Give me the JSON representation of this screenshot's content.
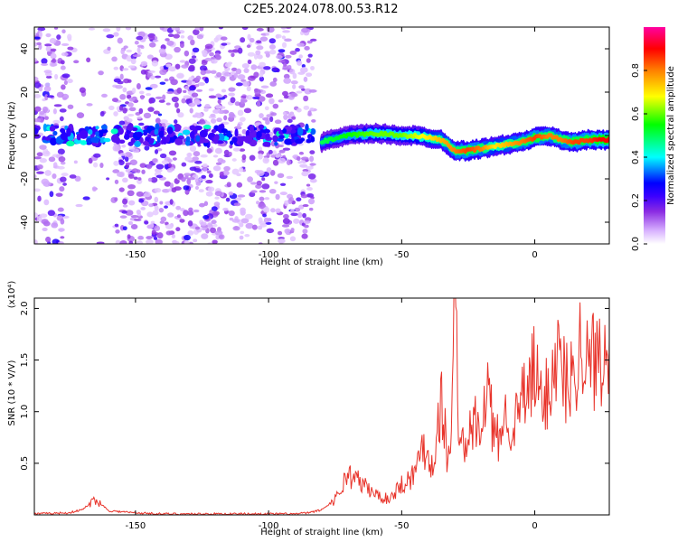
{
  "title": "C2E5.2024.078.00.53.R12",
  "chart_data": [
    {
      "type": "heatmap",
      "xlabel": "Height of straight line (km)",
      "ylabel": "Frequency (Hz)",
      "xlim": [
        -188,
        28
      ],
      "ylim": [
        -50,
        50
      ],
      "x_ticks": [
        -150,
        -100,
        -50,
        0
      ],
      "y_ticks": [
        -40,
        -20,
        0,
        20,
        40
      ],
      "colorbar": {
        "label": "Normalized spectral amplitude",
        "range": [
          0,
          1
        ],
        "ticks": [
          0.0,
          0.2,
          0.4,
          0.6,
          0.8
        ],
        "tick_labels": [
          "0.0",
          "0.2",
          "0.4",
          "0.6",
          "0.8"
        ],
        "colormap": [
          "#ffffff",
          "#d9b3ff",
          "#8a2be2",
          "#3b00ff",
          "#0000ff",
          "#00ffff",
          "#00ff00",
          "#ffff00",
          "#ff8000",
          "#ff0000",
          "#ff00a0"
        ]
      },
      "ridge": {
        "x": [
          -80,
          -70,
          -60,
          -50,
          -45,
          -40,
          -35,
          -30,
          -25,
          -20,
          -15,
          -10,
          -5,
          0,
          5,
          10,
          15,
          20,
          25,
          28
        ],
        "freq": [
          -3,
          0,
          1,
          0,
          0,
          -1,
          -2,
          -7,
          -7,
          -6,
          -5,
          -4,
          -3,
          -1,
          0,
          -2,
          -3,
          -2,
          -2,
          -2
        ],
        "amplitude": [
          0.5,
          0.55,
          0.6,
          0.6,
          0.65,
          0.7,
          0.75,
          0.8,
          0.85,
          0.8,
          0.7,
          0.75,
          0.8,
          0.85,
          0.8,
          0.8,
          0.85,
          0.85,
          0.9,
          0.9
        ]
      },
      "noise_region": {
        "x_range": [
          -188,
          -83
        ],
        "freq_range": [
          -50,
          50
        ],
        "amplitude": "0.05–0.4"
      }
    },
    {
      "type": "line",
      "xlabel": "Height of straight line (km)",
      "ylabel": "SNR (10 * V/V)",
      "ylabel_multiplier": "(x10⁴)",
      "xlim": [
        -188,
        28
      ],
      "ylim": [
        0,
        2.1
      ],
      "x_ticks": [
        -150,
        -100,
        -50,
        0
      ],
      "y_ticks": [
        0.5,
        1.0,
        1.5,
        2.0
      ],
      "y_tick_labels": [
        "0.5",
        "1.0",
        "1.5",
        "2.0"
      ],
      "color": "#e8332a",
      "series": [
        {
          "x": [
            -188,
            -175,
            -170,
            -165,
            -160,
            -150,
            -140,
            -120,
            -100,
            -90,
            -85,
            -80,
            -75,
            -72,
            -70,
            -65,
            -60,
            -55,
            -50,
            -45,
            -42,
            -40,
            -38,
            -35,
            -33,
            -32,
            -30,
            -28,
            -25,
            -22,
            -20,
            -18,
            -15,
            -12,
            -10,
            -8,
            -5,
            -3,
            0,
            3,
            5,
            8,
            10,
            13,
            15,
            18,
            20,
            22,
            25,
            28
          ],
          "y": [
            0.01,
            0.02,
            0.05,
            0.15,
            0.04,
            0.02,
            0.01,
            0.01,
            0.01,
            0.01,
            0.02,
            0.05,
            0.15,
            0.3,
            0.4,
            0.3,
            0.2,
            0.15,
            0.3,
            0.4,
            0.7,
            0.55,
            0.5,
            1.15,
            0.6,
            0.5,
            2.1,
            0.6,
            0.75,
            0.9,
            0.7,
            1.3,
            0.7,
            0.85,
            1.05,
            0.8,
            1.1,
            1.15,
            1.4,
            1.0,
            1.25,
            1.55,
            1.45,
            1.2,
            1.5,
            1.7,
            1.4,
            1.5,
            1.6,
            1.7
          ]
        }
      ]
    }
  ]
}
